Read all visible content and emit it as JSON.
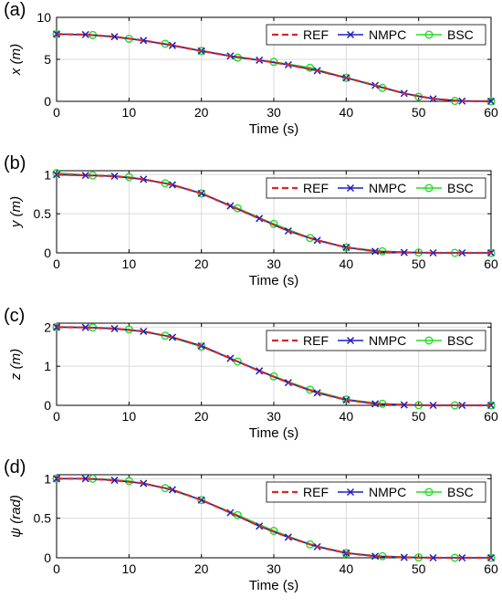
{
  "colors": {
    "ref": "#d62728",
    "nmpc": "#1f1fbf",
    "bsc": "#22dd22",
    "grid": "#d9d9d9",
    "axis": "#000000"
  },
  "chart_data": [
    {
      "type": "line",
      "panel_label": "(a)",
      "xlabel": "Time (s)",
      "ylabel": "x (m)",
      "xlim": [
        0,
        60
      ],
      "ylim": [
        0,
        10
      ],
      "xticks": [
        0,
        10,
        20,
        30,
        40,
        50,
        60
      ],
      "yticks": [
        0,
        5,
        10
      ],
      "grid": true,
      "legend_position": "top-right",
      "series": [
        {
          "name": "REF",
          "marker": "none",
          "x": [
            0,
            4,
            8,
            12,
            16,
            20,
            24,
            28,
            32,
            36,
            40,
            44,
            48,
            52,
            56,
            60
          ],
          "y": [
            8,
            7.95,
            7.7,
            7.25,
            6.65,
            6.0,
            5.4,
            4.9,
            4.35,
            3.65,
            2.8,
            1.9,
            0.95,
            0.3,
            0.03,
            0
          ]
        },
        {
          "name": "NMPC",
          "marker": "x",
          "x": [
            0,
            4,
            8,
            12,
            16,
            20,
            24,
            28,
            32,
            36,
            40,
            44,
            48,
            52,
            56,
            60
          ],
          "y": [
            8,
            7.95,
            7.7,
            7.25,
            6.65,
            6.0,
            5.4,
            4.9,
            4.35,
            3.65,
            2.8,
            1.9,
            0.95,
            0.3,
            0.03,
            0
          ]
        },
        {
          "name": "BSC",
          "marker": "o",
          "x": [
            0,
            5,
            10,
            15,
            20,
            25,
            30,
            35,
            40,
            45,
            50,
            55,
            60
          ],
          "y": [
            8,
            7.9,
            7.45,
            6.85,
            6.0,
            5.2,
            4.7,
            4.0,
            2.8,
            1.6,
            0.55,
            0.05,
            0
          ]
        }
      ]
    },
    {
      "type": "line",
      "panel_label": "(b)",
      "xlabel": "Time (s)",
      "ylabel": "y (m)",
      "xlim": [
        0,
        60
      ],
      "ylim": [
        0,
        1.05
      ],
      "xticks": [
        0,
        10,
        20,
        30,
        40,
        50,
        60
      ],
      "yticks": [
        0,
        0.5,
        1
      ],
      "grid": true,
      "legend_position": "top-right",
      "series": [
        {
          "name": "REF",
          "marker": "none",
          "x": [
            0,
            4,
            8,
            12,
            16,
            20,
            24,
            28,
            32,
            36,
            40,
            44,
            48,
            52,
            56,
            60
          ],
          "y": [
            1.0,
            0.99,
            0.98,
            0.94,
            0.87,
            0.76,
            0.6,
            0.44,
            0.28,
            0.16,
            0.07,
            0.02,
            0.005,
            0,
            0,
            0
          ]
        },
        {
          "name": "NMPC",
          "marker": "x",
          "x": [
            0,
            4,
            8,
            12,
            16,
            20,
            24,
            28,
            32,
            36,
            40,
            44,
            48,
            52,
            56,
            60
          ],
          "y": [
            1.0,
            0.99,
            0.98,
            0.94,
            0.87,
            0.76,
            0.6,
            0.44,
            0.28,
            0.16,
            0.07,
            0.02,
            0.005,
            0,
            0,
            0
          ]
        },
        {
          "name": "BSC",
          "marker": "o",
          "x": [
            0,
            5,
            10,
            15,
            20,
            25,
            30,
            35,
            40,
            45,
            50,
            55,
            60
          ],
          "y": [
            1.02,
            0.99,
            0.97,
            0.89,
            0.76,
            0.57,
            0.37,
            0.19,
            0.07,
            0.02,
            0.005,
            0,
            0
          ]
        }
      ]
    },
    {
      "type": "line",
      "panel_label": "(c)",
      "xlabel": "Time (s)",
      "ylabel": "z (m)",
      "xlim": [
        0,
        60
      ],
      "ylim": [
        0,
        2.1
      ],
      "xticks": [
        0,
        10,
        20,
        30,
        40,
        50,
        60
      ],
      "yticks": [
        0,
        1,
        2
      ],
      "grid": true,
      "legend_position": "top-right",
      "series": [
        {
          "name": "REF",
          "marker": "none",
          "x": [
            0,
            4,
            8,
            12,
            16,
            20,
            24,
            28,
            32,
            36,
            40,
            44,
            48,
            52,
            56,
            60
          ],
          "y": [
            2.0,
            1.99,
            1.96,
            1.89,
            1.74,
            1.52,
            1.2,
            0.88,
            0.58,
            0.32,
            0.14,
            0.04,
            0.01,
            0,
            0,
            0
          ]
        },
        {
          "name": "NMPC",
          "marker": "x",
          "x": [
            0,
            4,
            8,
            12,
            16,
            20,
            24,
            28,
            32,
            36,
            40,
            44,
            48,
            52,
            56,
            60
          ],
          "y": [
            2.0,
            1.99,
            1.96,
            1.89,
            1.74,
            1.52,
            1.2,
            0.88,
            0.58,
            0.32,
            0.14,
            0.04,
            0.01,
            0,
            0,
            0
          ]
        },
        {
          "name": "BSC",
          "marker": "o",
          "x": [
            0,
            5,
            10,
            15,
            20,
            25,
            30,
            35,
            40,
            45,
            50,
            55,
            60
          ],
          "y": [
            2.0,
            1.99,
            1.94,
            1.78,
            1.5,
            1.12,
            0.74,
            0.4,
            0.15,
            0.04,
            0.005,
            0,
            0
          ]
        }
      ]
    },
    {
      "type": "line",
      "panel_label": "(d)",
      "xlabel": "Time (s)",
      "ylabel": "ψ (rad)",
      "xlim": [
        0,
        60
      ],
      "ylim": [
        0,
        1.05
      ],
      "xticks": [
        0,
        10,
        20,
        30,
        40,
        50,
        60
      ],
      "yticks": [
        0,
        0.5,
        1
      ],
      "grid": true,
      "legend_position": "top-right",
      "series": [
        {
          "name": "REF",
          "marker": "none",
          "x": [
            0,
            4,
            8,
            12,
            16,
            20,
            24,
            28,
            32,
            36,
            40,
            44,
            48,
            52,
            56,
            60
          ],
          "y": [
            1.0,
            1.0,
            0.98,
            0.94,
            0.86,
            0.73,
            0.57,
            0.4,
            0.26,
            0.14,
            0.06,
            0.02,
            0.005,
            0,
            0,
            0
          ]
        },
        {
          "name": "NMPC",
          "marker": "x",
          "x": [
            0,
            4,
            8,
            12,
            16,
            20,
            24,
            28,
            32,
            36,
            40,
            44,
            48,
            52,
            56,
            60
          ],
          "y": [
            1.0,
            1.0,
            0.98,
            0.94,
            0.86,
            0.73,
            0.57,
            0.4,
            0.26,
            0.14,
            0.06,
            0.02,
            0.005,
            0,
            0,
            0
          ]
        },
        {
          "name": "BSC",
          "marker": "o",
          "x": [
            0,
            5,
            10,
            15,
            20,
            25,
            30,
            35,
            40,
            45,
            50,
            55,
            60
          ],
          "y": [
            1.0,
            1.0,
            0.97,
            0.88,
            0.73,
            0.54,
            0.34,
            0.17,
            0.06,
            0.02,
            0.005,
            0,
            0
          ]
        }
      ]
    }
  ]
}
